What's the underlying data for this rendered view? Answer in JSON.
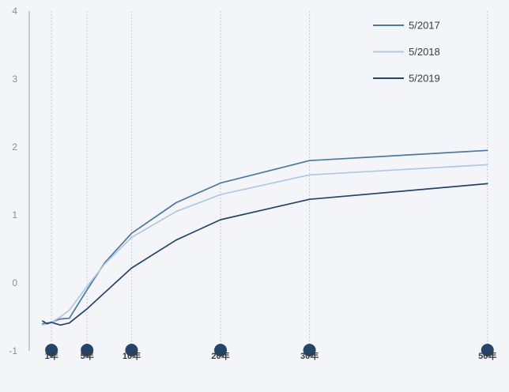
{
  "chart_data": {
    "type": "line",
    "title": "",
    "xlabel": "",
    "ylabel": "",
    "ylim": [
      -1,
      4
    ],
    "y_ticks": [
      -1,
      0,
      1,
      2,
      3,
      4
    ],
    "xlim": [
      -1.5,
      51
    ],
    "grid": {
      "x": "dotted vertical",
      "y": "off"
    },
    "legend_position": "top-right",
    "x_markers": [
      {
        "x": 1,
        "label": "1年"
      },
      {
        "x": 5,
        "label": "5年"
      },
      {
        "x": 10,
        "label": "10年"
      },
      {
        "x": 20,
        "label": "20年"
      },
      {
        "x": 30,
        "label": "30年"
      },
      {
        "x": 50,
        "label": "50年"
      }
    ],
    "series": [
      {
        "name": "5/2017",
        "color": "#4a76a8",
        "x": [
          0,
          1,
          1.5,
          2,
          3,
          5,
          7,
          10,
          15,
          20,
          30,
          50
        ],
        "y": [
          -0.6,
          -0.58,
          -0.55,
          -0.53,
          -0.52,
          -0.1,
          0.3,
          0.73,
          1.18,
          1.47,
          1.8,
          1.95
        ]
      },
      {
        "name": "5/2018",
        "color": "#aec8e3",
        "x": [
          0,
          1,
          2,
          3,
          5,
          7,
          10,
          15,
          20,
          30,
          50
        ],
        "y": [
          -0.62,
          -0.58,
          -0.5,
          -0.4,
          -0.05,
          0.28,
          0.67,
          1.05,
          1.3,
          1.59,
          1.74
        ]
      },
      {
        "name": "5/2019",
        "color": "#24456b",
        "x": [
          0,
          0.5,
          1,
          1.5,
          2,
          3,
          5,
          7,
          10,
          15,
          20,
          30,
          50
        ],
        "y": [
          -0.56,
          -0.6,
          -0.58,
          -0.6,
          -0.62,
          -0.59,
          -0.38,
          -0.14,
          0.22,
          0.63,
          0.93,
          1.23,
          1.46
        ]
      }
    ]
  },
  "colors": {
    "background": "#f4f5f9",
    "axis": "#9a9a9a",
    "grid": "#c8cbd2",
    "tick_label": "#8c8c8c",
    "marker": "#24456b",
    "marker_label": "#3a3a3a",
    "legend_text": "#3c3c3c"
  }
}
